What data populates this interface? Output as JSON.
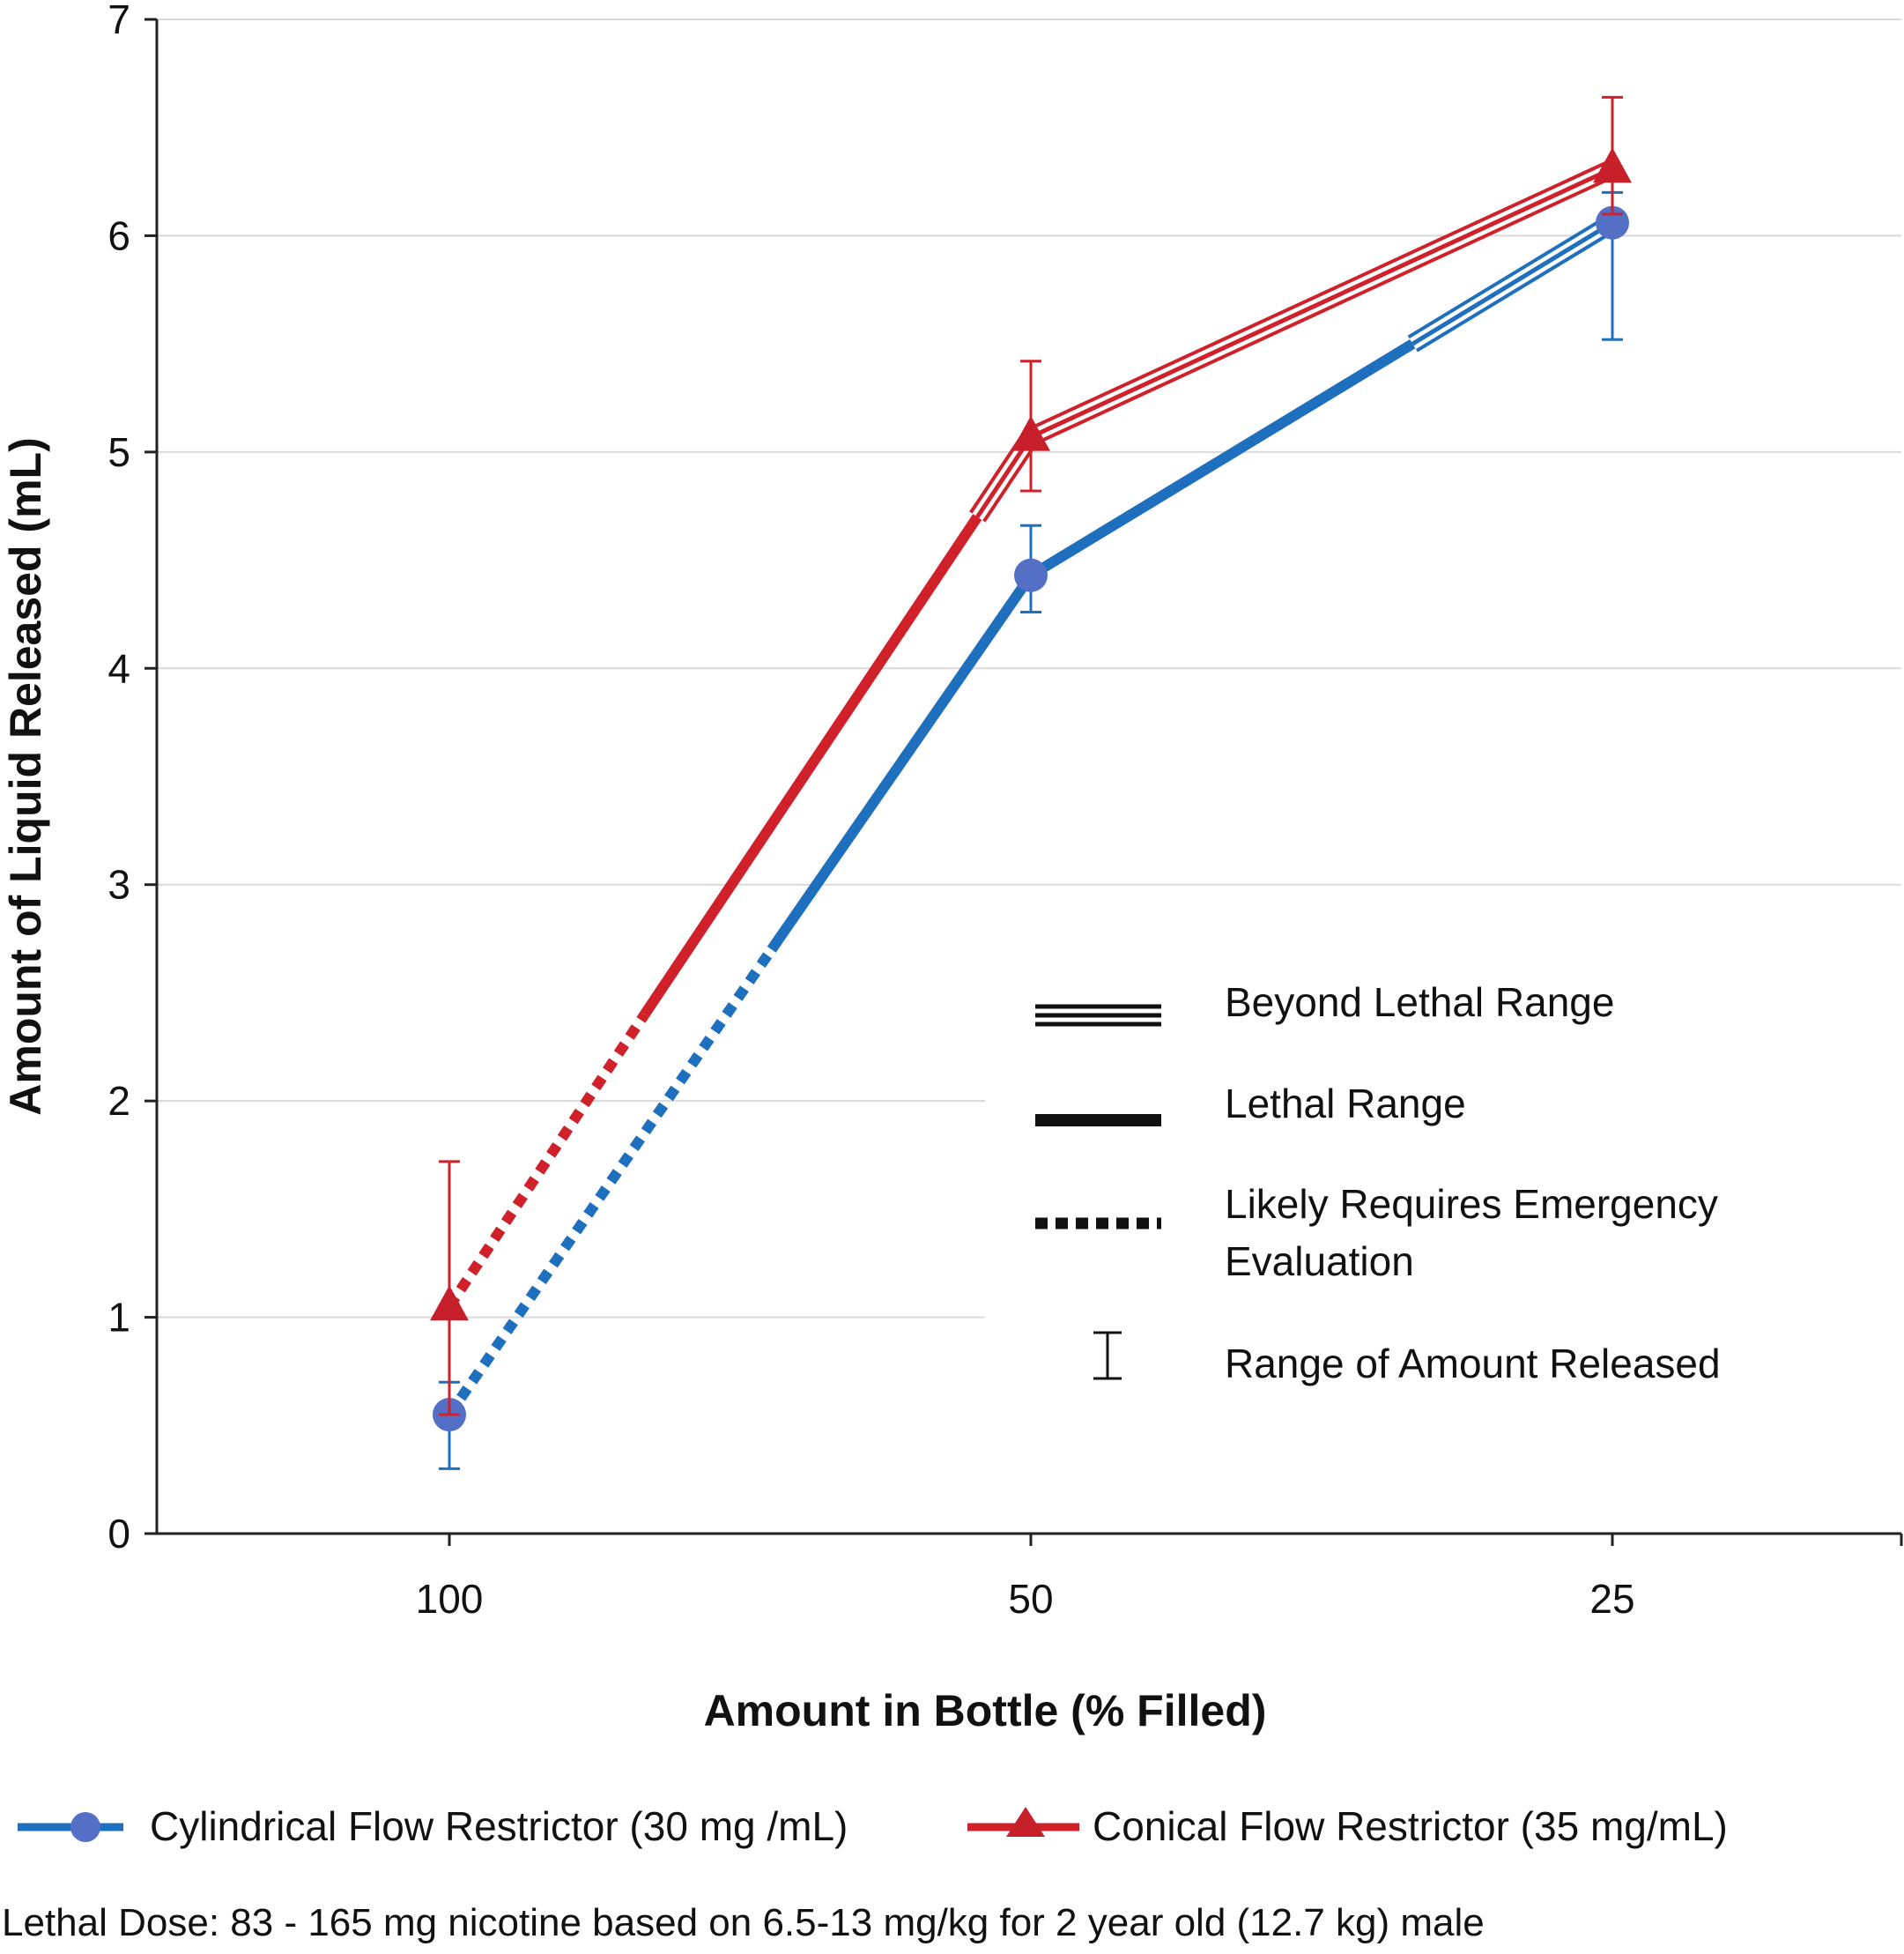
{
  "chart_data": {
    "type": "line",
    "xlabel": "Amount in Bottle (% Filled)",
    "ylabel": "Amount of Liquid Released (mL)",
    "categories": [
      "100",
      "50",
      "25"
    ],
    "ylim": [
      0,
      7
    ],
    "yticks": [
      "0",
      "1",
      "2",
      "3",
      "4",
      "5",
      "6",
      "7"
    ],
    "grid": true,
    "series": [
      {
        "name": "Cylindrical Flow Restrictor (30 mg /mL)",
        "color": "#1f6fbf",
        "marker_color": "#5470c6",
        "marker": "circle",
        "values": [
          0.55,
          4.43,
          6.06
        ],
        "error_low": [
          0.3,
          4.26,
          5.52
        ],
        "error_high": [
          0.7,
          4.66,
          6.2
        ],
        "segments": [
          {
            "from": 0.55,
            "to": 2.7,
            "style": "Likely Requires Emergency Evaluation"
          },
          {
            "from": 2.7,
            "to": 5.5,
            "style": "Lethal Range"
          },
          {
            "from": 5.5,
            "to": 6.06,
            "style": "Beyond Lethal Range"
          }
        ]
      },
      {
        "name": "Conical Flow Restrictor (35 mg/mL)",
        "color": "#d0202a",
        "marker_color": "#c8202a",
        "marker": "triangle",
        "values": [
          1.05,
          5.07,
          6.31
        ],
        "error_low": [
          0.55,
          4.82,
          6.1
        ],
        "error_high": [
          1.72,
          5.42,
          6.64
        ],
        "segments": [
          {
            "from": 1.05,
            "to": 2.4,
            "style": "Likely Requires Emergency Evaluation"
          },
          {
            "from": 2.4,
            "to": 4.7,
            "style": "Lethal Range"
          },
          {
            "from": 4.7,
            "to": 6.31,
            "style": "Beyond Lethal Range"
          }
        ]
      }
    ],
    "style_legend": {
      "placement": "right-center",
      "entries": [
        {
          "label": "Beyond Lethal Range",
          "symbol": "triple-line"
        },
        {
          "label": "Lethal Range",
          "symbol": "solid-line"
        },
        {
          "label_lines": [
            "Likely Requires Emergency",
            "Evaluation"
          ],
          "symbol": "dotted-line"
        },
        {
          "label": "Range of Amount Released",
          "symbol": "error-bar"
        }
      ]
    },
    "footnote": "Lethal Dose: 83 - 165 mg nicotine based on  6.5-13 mg/kg for 2 year old (12.7 kg) male"
  }
}
